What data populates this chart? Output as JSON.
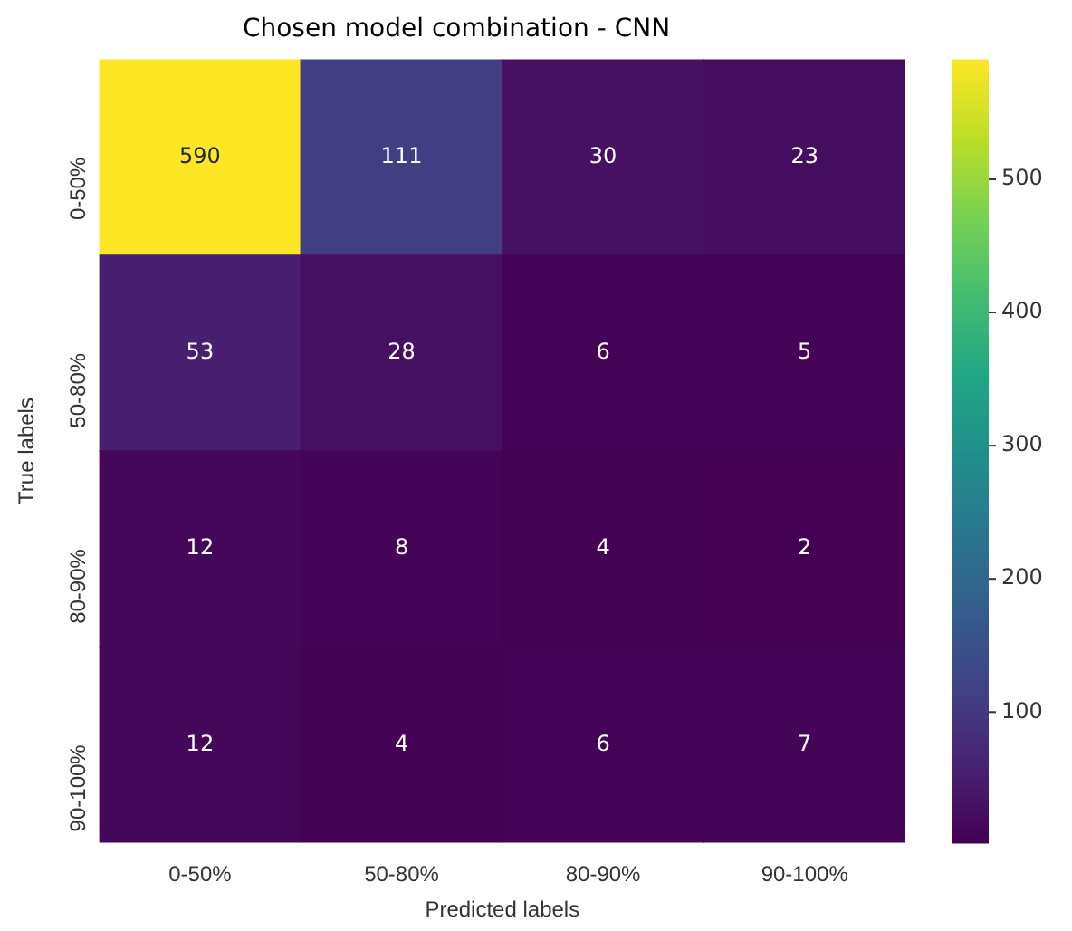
{
  "chart_data": {
    "type": "heatmap",
    "title": "Chosen model combination - CNN",
    "xlabel": "Predicted labels",
    "ylabel": "True labels",
    "categories": [
      "0-50%",
      "50-80%",
      "80-90%",
      "90-100%"
    ],
    "y_categories": [
      "0-50%",
      "50-80%",
      "80-90%",
      "90-100%"
    ],
    "cells": [
      [
        590,
        111,
        30,
        23
      ],
      [
        53,
        28,
        6,
        5
      ],
      [
        12,
        8,
        4,
        2
      ],
      [
        12,
        4,
        6,
        7
      ]
    ],
    "clim": [
      2,
      590
    ],
    "cticks": [
      100,
      200,
      300,
      400,
      500
    ],
    "data_labels": true
  }
}
